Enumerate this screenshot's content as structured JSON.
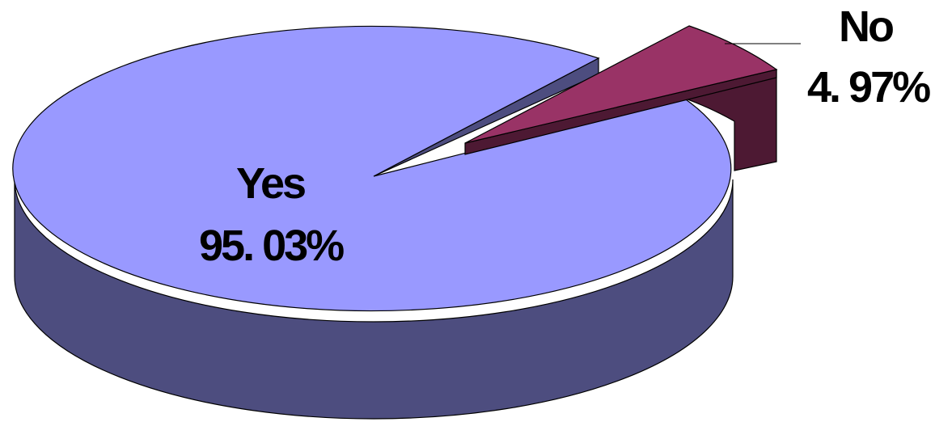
{
  "chart_data": {
    "type": "pie",
    "style": "3d-exploded",
    "slices": [
      {
        "name": "Yes",
        "value": 95.03,
        "label": "Yes",
        "value_label": "95. 03%",
        "top_color": "#9999ff",
        "side_color": "#4d4d7f"
      },
      {
        "name": "No",
        "value": 4.97,
        "label": "No",
        "value_label": "4. 97%",
        "top_color": "#993366",
        "side_color": "#4d1933"
      }
    ]
  }
}
